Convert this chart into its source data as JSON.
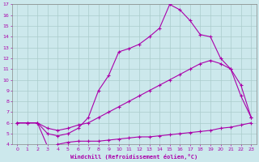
{
  "xlabel": "Windchill (Refroidissement éolien,°C)",
  "ylabel": "",
  "background_color": "#cce8ec",
  "line_color": "#aa00aa",
  "grid_color": "#aacccc",
  "xlim": [
    -0.5,
    23.5
  ],
  "ylim": [
    4,
    17
  ],
  "xticks": [
    0,
    1,
    2,
    3,
    4,
    5,
    6,
    7,
    8,
    9,
    10,
    11,
    12,
    13,
    14,
    15,
    16,
    17,
    18,
    19,
    20,
    21,
    22,
    23
  ],
  "yticks": [
    4,
    5,
    6,
    7,
    8,
    9,
    10,
    11,
    12,
    13,
    14,
    15,
    16,
    17
  ],
  "line1_x": [
    0,
    1,
    2,
    3,
    4,
    5,
    6,
    7,
    8,
    9,
    10,
    11,
    12,
    13,
    14,
    15,
    16,
    17,
    18,
    19,
    20,
    21,
    22,
    23
  ],
  "line1_y": [
    6.0,
    6.0,
    6.0,
    3.8,
    4.0,
    4.2,
    4.3,
    4.3,
    4.3,
    4.4,
    4.5,
    4.6,
    4.7,
    4.7,
    4.8,
    4.9,
    5.0,
    5.1,
    5.2,
    5.3,
    5.5,
    5.6,
    5.8,
    6.0
  ],
  "line2_x": [
    0,
    1,
    2,
    3,
    4,
    5,
    6,
    7,
    8,
    9,
    10,
    11,
    12,
    13,
    14,
    15,
    16,
    17,
    18,
    19,
    20,
    21,
    22,
    23
  ],
  "line2_y": [
    6.0,
    6.0,
    6.0,
    5.5,
    5.3,
    5.5,
    5.8,
    6.0,
    6.5,
    7.0,
    7.5,
    8.0,
    8.5,
    9.0,
    9.5,
    10.0,
    10.5,
    11.0,
    11.5,
    11.8,
    11.5,
    11.0,
    9.5,
    6.5
  ],
  "line3_x": [
    0,
    1,
    2,
    3,
    4,
    5,
    6,
    7,
    8,
    9,
    10,
    11,
    12,
    13,
    14,
    15,
    16,
    17,
    18,
    19,
    20,
    21,
    22,
    23
  ],
  "line3_y": [
    6.0,
    6.0,
    6.0,
    5.0,
    4.8,
    5.0,
    5.5,
    6.5,
    9.0,
    10.4,
    12.6,
    12.9,
    13.3,
    14.0,
    14.8,
    17.0,
    16.5,
    15.5,
    14.2,
    14.0,
    12.0,
    11.0,
    8.5,
    6.5
  ]
}
